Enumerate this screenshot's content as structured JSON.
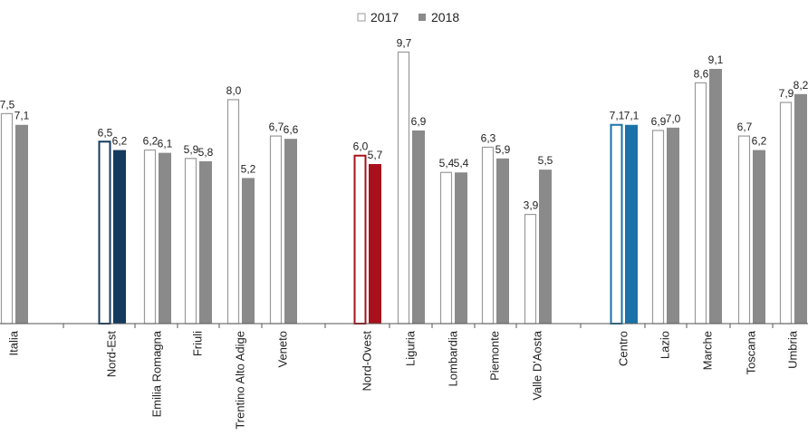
{
  "chart_data": {
    "type": "bar",
    "title": "",
    "xlabel": "",
    "ylabel": "",
    "ylim": [
      0,
      10.2
    ],
    "grid": false,
    "legend_placement": "top-center",
    "series": [
      {
        "name": "2017",
        "style": "outline",
        "color": "#9a9a9a"
      },
      {
        "name": "2018",
        "style": "filled",
        "color": "#8a8a8a"
      }
    ],
    "categories": [
      {
        "label": "Italia",
        "v2017": 7.5,
        "v2017_label": "7,5",
        "v2018": 7.1,
        "v2018_label": "7,1"
      },
      {
        "label": "Nord-Est",
        "v2017": 6.5,
        "v2017_label": "6,5",
        "v2018": 6.2,
        "v2018_label": "6,2",
        "highlight": "#143a5e"
      },
      {
        "label": "Emilia Romagna",
        "v2017": 6.2,
        "v2017_label": "6,2",
        "v2018": 6.1,
        "v2018_label": "6,1"
      },
      {
        "label": "Friuli",
        "v2017": 5.9,
        "v2017_label": "5,9",
        "v2018": 5.8,
        "v2018_label": "5,8"
      },
      {
        "label": "Trentino Alto Adige",
        "v2017": 8.0,
        "v2017_label": "8,0",
        "v2018": 5.2,
        "v2018_label": "5,2"
      },
      {
        "label": "Veneto",
        "v2017": 6.7,
        "v2017_label": "6,7",
        "v2018": 6.6,
        "v2018_label": "6,6"
      },
      {
        "label": "Nord-Ovest",
        "v2017": 6.0,
        "v2017_label": "6,0",
        "v2018": 5.7,
        "v2018_label": "5,7",
        "highlight": "#a8101c"
      },
      {
        "label": "Liguria",
        "v2017": 9.7,
        "v2017_label": "9,7",
        "v2018": 6.9,
        "v2018_label": "6,9"
      },
      {
        "label": "Lombardia",
        "v2017": 5.4,
        "v2017_label": "5,4",
        "v2018": 5.4,
        "v2018_label": "5,4"
      },
      {
        "label": "Piemonte",
        "v2017": 6.3,
        "v2017_label": "6,3",
        "v2018": 5.9,
        "v2018_label": "5,9"
      },
      {
        "label": "Valle D'Aosta",
        "v2017": 3.9,
        "v2017_label": "3,9",
        "v2018": 5.5,
        "v2018_label": "5,5"
      },
      {
        "label": "Centro",
        "v2017": 7.1,
        "v2017_label": "7,1",
        "v2018": 7.1,
        "v2018_label": "7,1",
        "highlight": "#1a72a8"
      },
      {
        "label": "Lazio",
        "v2017": 6.9,
        "v2017_label": "6,9",
        "v2018": 7.0,
        "v2018_label": "7,0"
      },
      {
        "label": "Marche",
        "v2017": 8.6,
        "v2017_label": "8,6",
        "v2018": 9.1,
        "v2018_label": "9,1"
      },
      {
        "label": "Toscana",
        "v2017": 6.7,
        "v2017_label": "6,7",
        "v2018": 6.2,
        "v2018_label": "6,2"
      },
      {
        "label": "Umbria",
        "v2017": 7.9,
        "v2017_label": "7,9",
        "v2018": 8.2,
        "v2018_label": "8,2"
      }
    ]
  }
}
